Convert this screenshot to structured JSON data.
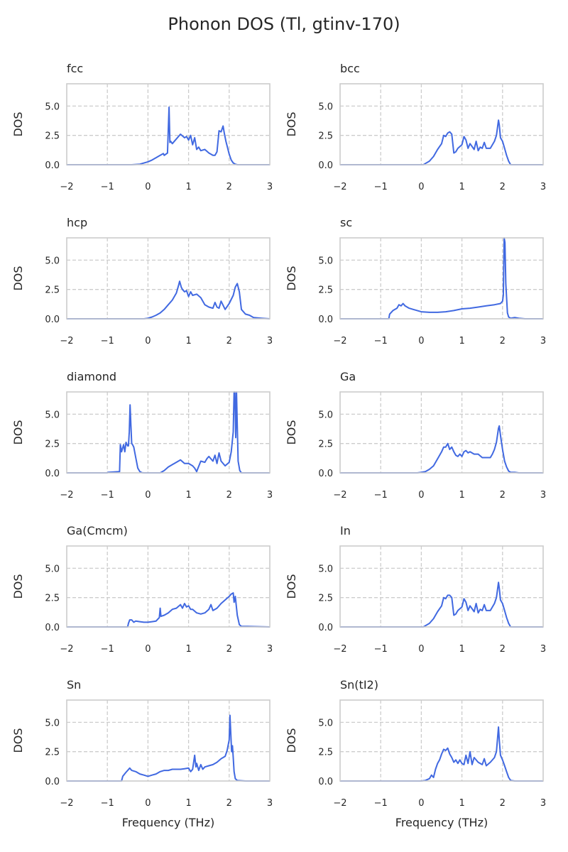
{
  "figure": {
    "title": "Phonon DOS (Tl, gtinv-170)",
    "line_color": "#4169e1",
    "grid_color": "#cccccc"
  },
  "chart_data": [
    {
      "type": "line",
      "title": "fcc",
      "xlabel": "",
      "ylabel": "DOS",
      "xlim": [
        -2,
        3
      ],
      "ylim": [
        0,
        6.9
      ],
      "xticks": [
        "−2",
        "−1",
        "0",
        "1",
        "2",
        "3"
      ],
      "yticks": [
        "0.0",
        "2.5",
        "5.0"
      ],
      "grid": true,
      "series": [
        {
          "x": [
            -2,
            -0.4,
            -0.2,
            0,
            0.1,
            0.2,
            0.3,
            0.38,
            0.4,
            0.48,
            0.52,
            0.54,
            0.56,
            0.6,
            0.7,
            0.8,
            0.9,
            0.95,
            1.0,
            1.05,
            1.1,
            1.15,
            1.2,
            1.25,
            1.3,
            1.4,
            1.5,
            1.6,
            1.65,
            1.7,
            1.75,
            1.8,
            1.85,
            1.88,
            1.92,
            1.95,
            2.0,
            2.05,
            2.1,
            2.15,
            2.2,
            2.3,
            3
          ],
          "y": [
            0,
            0,
            0.05,
            0.25,
            0.4,
            0.6,
            0.8,
            0.95,
            0.8,
            1.0,
            4.9,
            1.9,
            2.0,
            1.8,
            2.2,
            2.6,
            2.3,
            2.4,
            2.1,
            2.5,
            1.7,
            2.3,
            1.3,
            1.5,
            1.2,
            1.3,
            1.0,
            0.8,
            0.8,
            1.1,
            2.9,
            2.8,
            3.3,
            2.7,
            2.0,
            1.6,
            0.9,
            0.4,
            0.15,
            0.05,
            0,
            0,
            0
          ]
        }
      ]
    },
    {
      "type": "line",
      "title": "bcc",
      "xlabel": "",
      "ylabel": "DOS",
      "xlim": [
        -2,
        3
      ],
      "ylim": [
        0,
        6.9
      ],
      "xticks": [
        "−2",
        "−1",
        "0",
        "1",
        "2",
        "3"
      ],
      "yticks": [
        "0.0",
        "2.5",
        "5.0"
      ],
      "grid": true,
      "series": [
        {
          "x": [
            -2,
            0.05,
            0.1,
            0.2,
            0.3,
            0.4,
            0.5,
            0.55,
            0.6,
            0.65,
            0.7,
            0.75,
            0.8,
            0.85,
            0.9,
            1.0,
            1.05,
            1.1,
            1.15,
            1.2,
            1.3,
            1.35,
            1.4,
            1.45,
            1.5,
            1.55,
            1.6,
            1.7,
            1.8,
            1.85,
            1.9,
            1.92,
            1.95,
            2.0,
            2.05,
            2.1,
            2.15,
            2.2,
            3
          ],
          "y": [
            0,
            0,
            0.1,
            0.3,
            0.7,
            1.3,
            1.8,
            2.5,
            2.4,
            2.7,
            2.8,
            2.6,
            1.0,
            1.1,
            1.4,
            1.7,
            2.4,
            2.1,
            1.4,
            1.8,
            1.3,
            2.0,
            1.2,
            1.5,
            1.4,
            1.9,
            1.4,
            1.4,
            2.0,
            2.5,
            3.8,
            3.4,
            2.3,
            2.0,
            1.4,
            0.8,
            0.3,
            0,
            0
          ]
        }
      ]
    },
    {
      "type": "line",
      "title": "hcp",
      "xlabel": "",
      "ylabel": "DOS",
      "xlim": [
        -2,
        3
      ],
      "ylim": [
        0,
        6.9
      ],
      "xticks": [
        "−2",
        "−1",
        "0",
        "1",
        "2",
        "3"
      ],
      "yticks": [
        "0.0",
        "2.5",
        "5.0"
      ],
      "grid": true,
      "series": [
        {
          "x": [
            -2,
            -0.1,
            0,
            0.1,
            0.2,
            0.3,
            0.4,
            0.5,
            0.6,
            0.7,
            0.75,
            0.78,
            0.82,
            0.85,
            0.9,
            0.95,
            1.0,
            1.05,
            1.1,
            1.2,
            1.3,
            1.4,
            1.5,
            1.6,
            1.65,
            1.7,
            1.75,
            1.8,
            1.9,
            2.0,
            2.1,
            2.15,
            2.2,
            2.25,
            2.3,
            2.4,
            2.5,
            2.6,
            2.8,
            3
          ],
          "y": [
            0,
            0,
            0.05,
            0.15,
            0.3,
            0.5,
            0.8,
            1.2,
            1.6,
            2.2,
            2.8,
            3.2,
            2.7,
            2.5,
            2.3,
            2.4,
            1.9,
            2.3,
            2.0,
            2.1,
            1.8,
            1.2,
            1.0,
            0.9,
            1.4,
            1.0,
            0.9,
            1.5,
            0.8,
            1.3,
            2.0,
            2.7,
            3.0,
            2.3,
            0.8,
            0.4,
            0.3,
            0.1,
            0.05,
            0
          ]
        }
      ]
    },
    {
      "type": "line",
      "title": "sc",
      "xlabel": "",
      "ylabel": "DOS",
      "xlim": [
        -2,
        3
      ],
      "ylim": [
        0,
        6.9
      ],
      "xticks": [
        "−2",
        "−1",
        "0",
        "1",
        "2",
        "3"
      ],
      "yticks": [
        "0.0",
        "2.5",
        "5.0"
      ],
      "grid": true,
      "series": [
        {
          "x": [
            -2,
            -0.8,
            -0.78,
            -0.7,
            -0.6,
            -0.55,
            -0.5,
            -0.45,
            -0.4,
            -0.3,
            -0.2,
            0,
            0.2,
            0.4,
            0.6,
            0.8,
            1.0,
            1.2,
            1.4,
            1.6,
            1.8,
            1.95,
            2.0,
            2.02,
            2.04,
            2.06,
            2.08,
            2.1,
            2.12,
            2.15,
            2.2,
            2.3,
            2.4,
            2.55,
            3
          ],
          "y": [
            0,
            0,
            0.4,
            0.7,
            0.9,
            1.2,
            1.1,
            1.3,
            1.1,
            0.9,
            0.8,
            0.6,
            0.55,
            0.55,
            0.6,
            0.7,
            0.85,
            0.9,
            1.0,
            1.1,
            1.2,
            1.3,
            1.5,
            2.0,
            6.9,
            6.5,
            3.0,
            1.8,
            0.5,
            0.15,
            0.05,
            0.1,
            0.05,
            0,
            0
          ]
        }
      ]
    },
    {
      "type": "line",
      "title": "diamond",
      "xlabel": "",
      "ylabel": "DOS",
      "xlim": [
        -2,
        3
      ],
      "ylim": [
        0,
        6.9
      ],
      "xticks": [
        "−2",
        "−1",
        "0",
        "1",
        "2",
        "3"
      ],
      "yticks": [
        "0.0",
        "2.5",
        "5.0"
      ],
      "grid": true,
      "series": [
        {
          "x": [
            -2,
            -1.0,
            -0.98,
            -0.7,
            -0.68,
            -0.65,
            -0.6,
            -0.57,
            -0.54,
            -0.5,
            -0.48,
            -0.46,
            -0.44,
            -0.42,
            -0.4,
            -0.38,
            -0.35,
            -0.3,
            -0.25,
            -0.2,
            -0.15,
            -0.1,
            0.3,
            0.4,
            0.5,
            0.6,
            0.7,
            0.8,
            0.9,
            1.0,
            1.1,
            1.15,
            1.2,
            1.22,
            1.3,
            1.4,
            1.45,
            1.5,
            1.6,
            1.65,
            1.7,
            1.75,
            1.8,
            1.9,
            2.0,
            2.05,
            2.1,
            2.12,
            2.14,
            2.16,
            2.18,
            2.2,
            2.22,
            2.26,
            2.3,
            2.4,
            2.55,
            3
          ],
          "y": [
            0,
            0,
            0.05,
            0.1,
            2.4,
            1.8,
            2.4,
            1.8,
            2.6,
            2.3,
            2.3,
            3.5,
            5.8,
            4.0,
            2.5,
            2.4,
            2.2,
            1.3,
            0.4,
            0.1,
            0.02,
            0,
            0,
            0.2,
            0.5,
            0.7,
            0.9,
            1.1,
            0.8,
            0.8,
            0.6,
            0.4,
            0.1,
            0.3,
            1.0,
            0.9,
            1.2,
            1.4,
            1.0,
            1.5,
            0.8,
            1.7,
            1.0,
            0.6,
            0.9,
            1.8,
            3.5,
            6.9,
            6.9,
            3.0,
            6.9,
            4.0,
            1.0,
            0.2,
            0,
            0,
            0,
            0
          ]
        }
      ]
    },
    {
      "type": "line",
      "title": "Ga",
      "xlabel": "",
      "ylabel": "DOS",
      "xlim": [
        -2,
        3
      ],
      "ylim": [
        0,
        6.9
      ],
      "xticks": [
        "−2",
        "−1",
        "0",
        "1",
        "2",
        "3"
      ],
      "yticks": [
        "0.0",
        "2.5",
        "5.0"
      ],
      "grid": true,
      "series": [
        {
          "x": [
            -2,
            -0.1,
            0,
            0.1,
            0.2,
            0.3,
            0.4,
            0.5,
            0.55,
            0.6,
            0.65,
            0.7,
            0.75,
            0.8,
            0.85,
            0.9,
            0.95,
            1.0,
            1.05,
            1.1,
            1.15,
            1.2,
            1.3,
            1.4,
            1.5,
            1.6,
            1.7,
            1.75,
            1.8,
            1.85,
            1.9,
            1.92,
            1.95,
            2.0,
            2.05,
            2.1,
            2.15,
            2.2,
            2.3,
            2.4,
            3
          ],
          "y": [
            0,
            0,
            0.05,
            0.1,
            0.3,
            0.6,
            1.2,
            1.8,
            2.2,
            2.2,
            2.5,
            2.0,
            2.2,
            1.8,
            1.5,
            1.4,
            1.6,
            1.4,
            1.8,
            1.9,
            1.7,
            1.8,
            1.6,
            1.6,
            1.3,
            1.3,
            1.3,
            1.6,
            2.0,
            2.6,
            3.8,
            4.0,
            3.2,
            2.0,
            1.0,
            0.5,
            0.15,
            0.05,
            0.05,
            0,
            0
          ]
        }
      ]
    },
    {
      "type": "line",
      "title": "Ga(Cmcm)",
      "xlabel": "",
      "ylabel": "DOS",
      "xlim": [
        -2,
        3
      ],
      "ylim": [
        0,
        6.9
      ],
      "xticks": [
        "−2",
        "−1",
        "0",
        "1",
        "2",
        "3"
      ],
      "yticks": [
        "0.0",
        "2.5",
        "5.0"
      ],
      "grid": true,
      "series": [
        {
          "x": [
            -2,
            -0.5,
            -0.48,
            -0.45,
            -0.4,
            -0.35,
            -0.3,
            -0.2,
            -0.1,
            0,
            0.1,
            0.2,
            0.28,
            0.3,
            0.32,
            0.4,
            0.5,
            0.6,
            0.7,
            0.8,
            0.85,
            0.9,
            0.95,
            1.0,
            1.05,
            1.1,
            1.2,
            1.3,
            1.4,
            1.5,
            1.55,
            1.6,
            1.7,
            1.8,
            1.9,
            2.0,
            2.05,
            2.1,
            2.12,
            2.15,
            2.2,
            2.25,
            2.3,
            2.45,
            3
          ],
          "y": [
            0,
            0,
            0.3,
            0.6,
            0.6,
            0.4,
            0.5,
            0.45,
            0.4,
            0.4,
            0.45,
            0.5,
            0.8,
            1.6,
            0.9,
            1.0,
            1.2,
            1.5,
            1.6,
            1.9,
            1.6,
            2.0,
            1.7,
            1.8,
            1.5,
            1.5,
            1.2,
            1.1,
            1.2,
            1.5,
            1.9,
            1.4,
            1.6,
            2.0,
            2.3,
            2.6,
            2.8,
            2.9,
            2.1,
            2.6,
            1.0,
            0.2,
            0.05,
            0.05,
            0
          ]
        }
      ]
    },
    {
      "type": "line",
      "title": "In",
      "xlabel": "",
      "ylabel": "DOS",
      "xlim": [
        -2,
        3
      ],
      "ylim": [
        0,
        6.9
      ],
      "xticks": [
        "−2",
        "−1",
        "0",
        "1",
        "2",
        "3"
      ],
      "yticks": [
        "0.0",
        "2.5",
        "5.0"
      ],
      "grid": true,
      "series": [
        {
          "x": [
            -2,
            0.05,
            0.1,
            0.2,
            0.3,
            0.4,
            0.5,
            0.55,
            0.6,
            0.65,
            0.7,
            0.75,
            0.8,
            0.85,
            0.9,
            1.0,
            1.05,
            1.1,
            1.15,
            1.2,
            1.3,
            1.35,
            1.4,
            1.45,
            1.5,
            1.55,
            1.6,
            1.7,
            1.8,
            1.85,
            1.9,
            1.92,
            1.95,
            2.0,
            2.05,
            2.1,
            2.15,
            2.2,
            3
          ],
          "y": [
            0,
            0,
            0.1,
            0.3,
            0.7,
            1.3,
            1.8,
            2.5,
            2.4,
            2.7,
            2.7,
            2.5,
            1.0,
            1.1,
            1.4,
            1.7,
            2.4,
            2.1,
            1.4,
            1.8,
            1.3,
            2.0,
            1.2,
            1.5,
            1.4,
            1.9,
            1.4,
            1.4,
            2.0,
            2.5,
            3.8,
            3.3,
            2.3,
            2.0,
            1.4,
            0.8,
            0.3,
            0,
            0
          ]
        }
      ]
    },
    {
      "type": "line",
      "title": "Sn",
      "xlabel": "Frequency (THz)",
      "ylabel": "DOS",
      "xlim": [
        -2,
        3
      ],
      "ylim": [
        0,
        6.9
      ],
      "xticks": [
        "−2",
        "−1",
        "0",
        "1",
        "2",
        "3"
      ],
      "yticks": [
        "0.0",
        "2.5",
        "5.0"
      ],
      "grid": true,
      "series": [
        {
          "x": [
            -2,
            -0.65,
            -0.62,
            -0.55,
            -0.5,
            -0.45,
            -0.4,
            -0.3,
            -0.2,
            -0.1,
            0,
            0.1,
            0.2,
            0.3,
            0.4,
            0.5,
            0.6,
            0.7,
            0.8,
            0.9,
            1.0,
            1.05,
            1.1,
            1.15,
            1.18,
            1.2,
            1.25,
            1.3,
            1.35,
            1.4,
            1.5,
            1.6,
            1.7,
            1.8,
            1.9,
            1.95,
            2.0,
            2.02,
            2.04,
            2.06,
            2.08,
            2.1,
            2.12,
            2.15,
            2.2,
            2.4,
            3
          ],
          "y": [
            0,
            0,
            0.4,
            0.7,
            0.9,
            1.1,
            0.9,
            0.8,
            0.6,
            0.5,
            0.4,
            0.5,
            0.6,
            0.8,
            0.9,
            0.9,
            1.0,
            1.0,
            1.0,
            1.05,
            1.1,
            0.8,
            1.0,
            2.2,
            1.2,
            1.5,
            0.9,
            1.4,
            1.0,
            1.2,
            1.3,
            1.4,
            1.6,
            1.9,
            2.1,
            2.6,
            3.5,
            5.6,
            4.0,
            2.5,
            3.0,
            2.0,
            0.8,
            0.2,
            0.05,
            0,
            0
          ]
        }
      ]
    },
    {
      "type": "line",
      "title": "Sn(tI2)",
      "xlabel": "Frequency (THz)",
      "ylabel": "DOS",
      "xlim": [
        -2,
        3
      ],
      "ylim": [
        0,
        6.9
      ],
      "xticks": [
        "−2",
        "−1",
        "0",
        "1",
        "2",
        "3"
      ],
      "yticks": [
        "0.0",
        "2.5",
        "5.0"
      ],
      "grid": true,
      "series": [
        {
          "x": [
            -2,
            0,
            0.1,
            0.2,
            0.25,
            0.3,
            0.35,
            0.4,
            0.45,
            0.5,
            0.55,
            0.6,
            0.65,
            0.7,
            0.75,
            0.8,
            0.85,
            0.9,
            0.95,
            1.0,
            1.05,
            1.1,
            1.15,
            1.2,
            1.25,
            1.3,
            1.4,
            1.5,
            1.55,
            1.6,
            1.7,
            1.8,
            1.85,
            1.9,
            1.92,
            1.95,
            2.0,
            2.05,
            2.1,
            2.15,
            2.2,
            2.3,
            3
          ],
          "y": [
            0,
            0,
            0.05,
            0.2,
            0.5,
            0.3,
            1.0,
            1.5,
            1.8,
            2.3,
            2.7,
            2.6,
            2.8,
            2.3,
            2.0,
            1.6,
            1.8,
            1.5,
            1.8,
            1.5,
            1.4,
            2.2,
            1.5,
            2.5,
            1.4,
            2.0,
            1.6,
            1.4,
            1.9,
            1.3,
            1.6,
            2.0,
            2.5,
            4.6,
            3.5,
            2.2,
            1.8,
            1.3,
            0.8,
            0.3,
            0.05,
            0,
            0
          ]
        }
      ]
    }
  ]
}
